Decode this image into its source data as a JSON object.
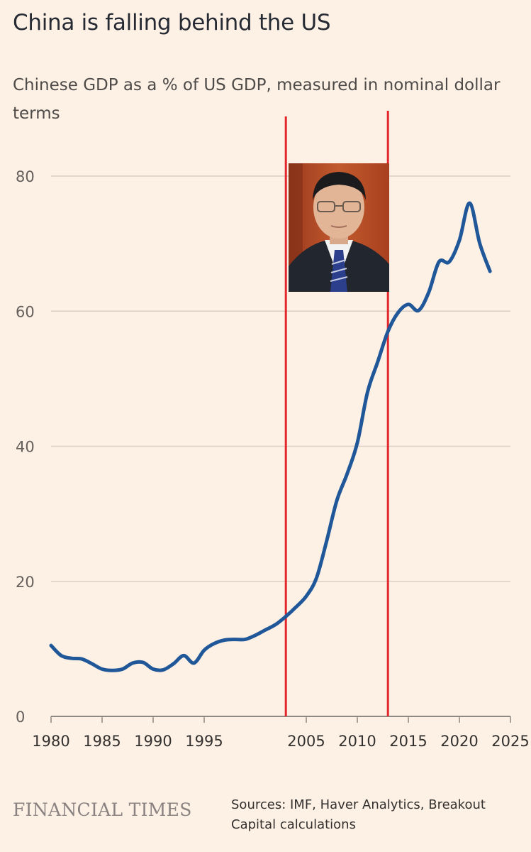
{
  "title": "China is falling behind the US",
  "subtitle": "Chinese GDP as a % of US GDP, measured in nominal dollar terms",
  "brand": "FINANCIAL TIMES",
  "source": "Sources: IMF, Haver Analytics, Breakout Capital calculations",
  "photo": "portrait of a man in a dark suit and tie",
  "colors": {
    "background": "#FDF1E6",
    "series": "#1F5799",
    "markers": "#E3262B",
    "grid": "#D9CEC5"
  },
  "chart_data": {
    "type": "line",
    "title": "China is falling behind the US",
    "ylabel": "",
    "xlabel": "",
    "xlim": [
      1980,
      2025
    ],
    "ylim": [
      0,
      80
    ],
    "yticks": [
      0,
      20,
      40,
      60,
      80
    ],
    "xticks": [
      "1980",
      "1985",
      "1990",
      "1995",
      "2005",
      "2010",
      "2015",
      "2020",
      "2025"
    ],
    "grid": true,
    "series": [
      {
        "x": [
          1980,
          1981,
          1982,
          1983,
          1984,
          1985,
          1986,
          1987,
          1988,
          1989,
          1990,
          1991,
          1992,
          1993,
          1994,
          1995,
          1996,
          1997,
          1998,
          1999,
          2000,
          2001,
          2002,
          2003,
          2004,
          2005,
          2006,
          2007,
          2008,
          2009,
          2010,
          2011,
          2012,
          2013,
          2014,
          2015,
          2016,
          2017,
          2018,
          2019,
          2020,
          2021,
          2022,
          2023
        ],
        "values": [
          10.5,
          9.0,
          8.6,
          8.5,
          7.8,
          7.0,
          6.8,
          7.0,
          7.9,
          8.0,
          7.0,
          6.9,
          7.8,
          9.0,
          7.9,
          9.8,
          10.8,
          11.3,
          11.4,
          11.4,
          12.0,
          12.8,
          13.6,
          14.8,
          16.2,
          17.8,
          20.5,
          26.0,
          32.0,
          35.9,
          40.5,
          48.0,
          52.5,
          57.0,
          59.8,
          61.0,
          60.1,
          62.8,
          67.3,
          67.3,
          70.5,
          76.0,
          70.0,
          65.9
        ]
      }
    ],
    "annotations": [
      {
        "type": "vertical-line",
        "x": 2003
      },
      {
        "type": "vertical-line",
        "x": 2013
      }
    ]
  }
}
